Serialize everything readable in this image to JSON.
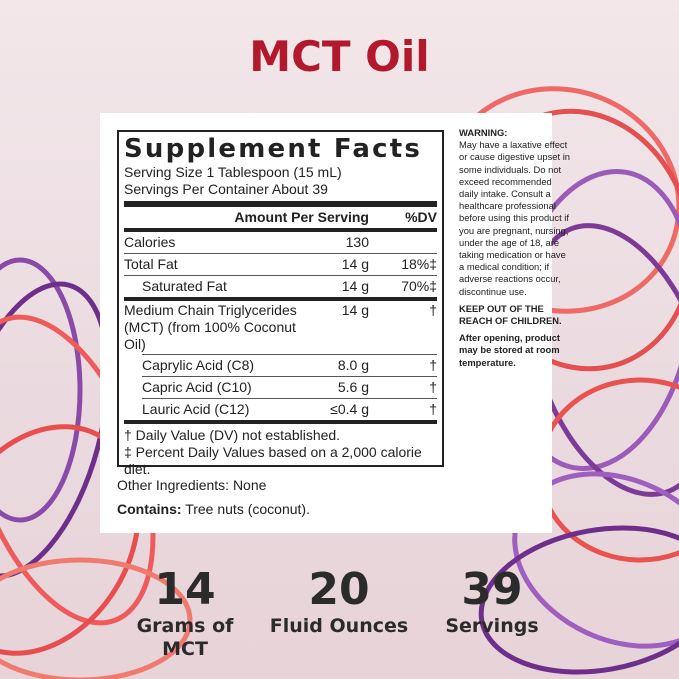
{
  "title": "MCT Oil",
  "facts": {
    "heading": "Supplement Facts",
    "serving_size": "Serving Size 1 Tablespoon (15 mL)",
    "servings_per_container": "Servings Per Container About 39",
    "col_amount": "Amount Per Serving",
    "col_dv": "%DV",
    "rows": [
      {
        "name": "Calories",
        "amount": "130",
        "dv": ""
      },
      {
        "name": "Total Fat",
        "amount": "14 g",
        "dv": "18%‡"
      },
      {
        "name": "Saturated Fat",
        "amount": "14 g",
        "dv": "70%‡"
      },
      {
        "name": "Medium Chain Triglycerides",
        "name2": "(MCT) (from 100% Coconut Oil)",
        "amount": "14 g",
        "dv": "†"
      },
      {
        "name": "Caprylic Acid (C8)",
        "amount": "8.0 g",
        "dv": "†"
      },
      {
        "name": "Capric Acid (C10)",
        "amount": "5.6 g",
        "dv": "†"
      },
      {
        "name": "Lauric Acid (C12)",
        "amount": "≤0.4 g",
        "dv": "†"
      }
    ],
    "footnote1": "† Daily Value (DV) not established.",
    "footnote2": "‡ Percent Daily Values based on a 2,000 calorie diet."
  },
  "other_ingredients": "Other Ingredients: None",
  "contains_label": "Contains:",
  "contains_value": " Tree nuts (coconut).",
  "warning": {
    "title": "WARNING:",
    "text": "May have a laxative effect or cause digestive upset in some individuals. Do not exceed recommended daily intake. Consult a healthcare professional before using this product if you are pregnant, nursing, under the age of 18, are taking medication or have a medical condition; if adverse reactions occur, discontinue use.",
    "keep_out": "KEEP OUT OF THE REACH OF CHILDREN.",
    "storage": "After opening, product may be stored at room temperature."
  },
  "stats": [
    {
      "number": "14",
      "label": "Grams of MCT"
    },
    {
      "number": "20",
      "label": "Fluid Ounces"
    },
    {
      "number": "39",
      "label": "Servings"
    }
  ],
  "colors": {
    "title": "#b3192c",
    "red_tube": "#ef5a5a",
    "purple_tube": "#8a4aa8"
  }
}
